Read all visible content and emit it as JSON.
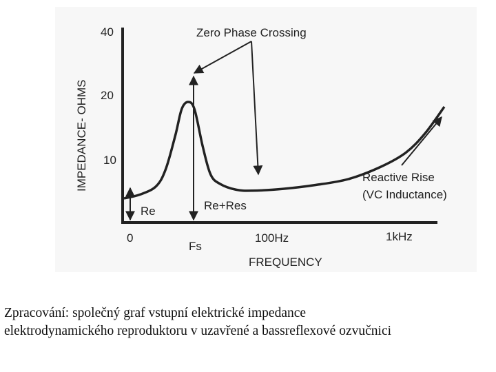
{
  "chart_data": {
    "type": "line",
    "xlabel": "FREQUENCY",
    "ylabel": "IMPEDANCE- OHMS",
    "yticks": [
      "40",
      "20",
      "10"
    ],
    "xticks": [
      "0",
      "100Hz",
      "1kHz"
    ],
    "fs_label": "Fs",
    "series": [
      {
        "values": [
          [
            0.0,
            5.0
          ],
          [
            0.05,
            5.8
          ],
          [
            0.1,
            7.5
          ],
          [
            0.13,
            11.0
          ],
          [
            0.16,
            18.0
          ],
          [
            0.18,
            23.5
          ],
          [
            0.2,
            25.0
          ],
          [
            0.22,
            23.5
          ],
          [
            0.245,
            16.0
          ],
          [
            0.27,
            10.0
          ],
          [
            0.3,
            8.0
          ],
          [
            0.35,
            6.8
          ],
          [
            0.4,
            6.6
          ],
          [
            0.5,
            7.0
          ],
          [
            0.6,
            7.8
          ],
          [
            0.7,
            9.0
          ],
          [
            0.8,
            11.5
          ],
          [
            0.88,
            14.5
          ],
          [
            0.94,
            18.5
          ],
          [
            1.0,
            24.0
          ]
        ]
      }
    ],
    "annotations": {
      "zero_phase": "Zero Phase Crossing",
      "reactive_rise_1": "Reactive Rise",
      "reactive_rise_2": "(VC Inductance)",
      "re": "Re",
      "re_res": "Re+Res"
    },
    "xlim": [
      0,
      1
    ],
    "ylim": [
      0,
      40
    ]
  },
  "caption": {
    "line1": "Zpracování: společný graf vstupní elektrické impedance",
    "line2": "elektrodynamického reproduktoru v uzavřené a bassreflexové ozvučnici"
  }
}
